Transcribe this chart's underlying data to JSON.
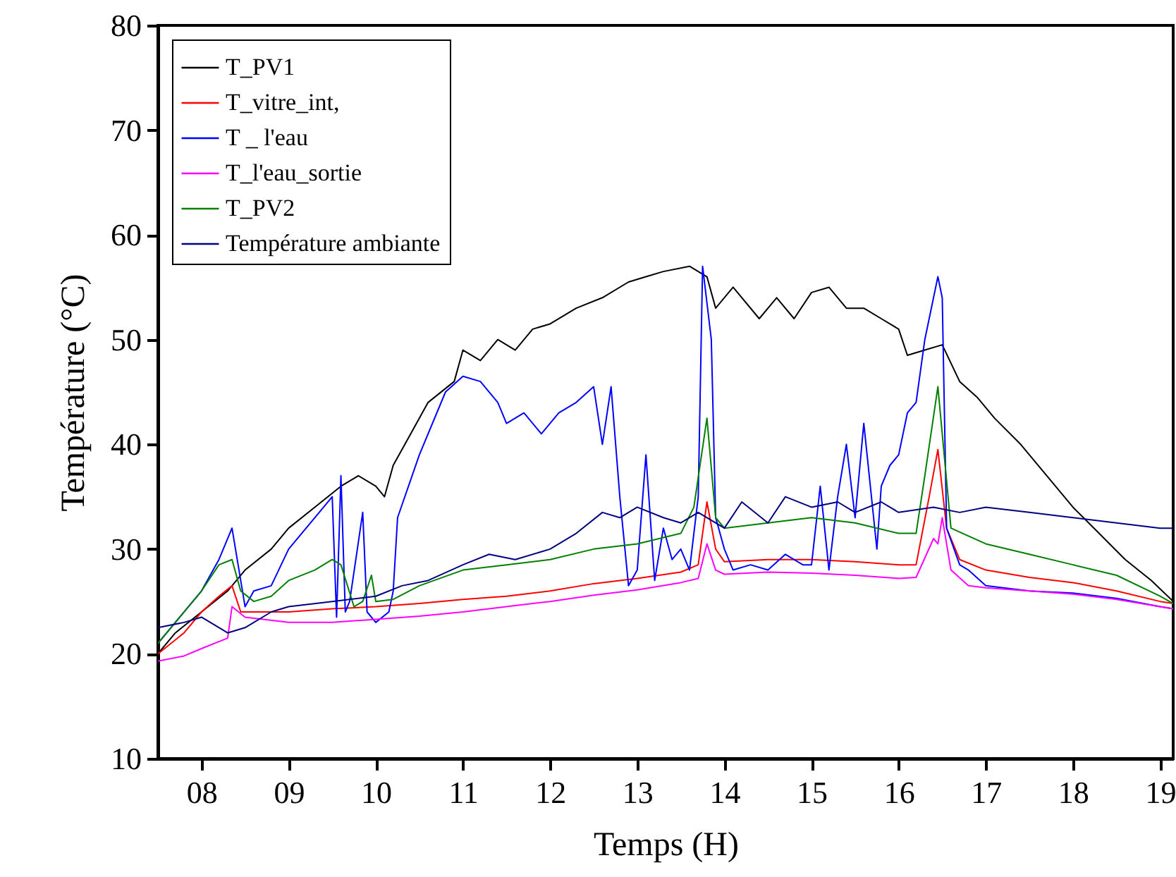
{
  "chart_data": {
    "type": "line",
    "xlabel": "Temps (H)",
    "ylabel": "Température (°C)",
    "legend": "top left",
    "marker": "none",
    "line_style": "solid",
    "xlim": [
      7.5,
      19.15
    ],
    "xticks": [
      {
        "value": 8,
        "label": "08"
      },
      {
        "value": 9,
        "label": "09"
      },
      10,
      11,
      12,
      13,
      14,
      15,
      16,
      17,
      18,
      19
    ],
    "ylim": [
      10,
      80
    ],
    "yticks": [
      10,
      20,
      30,
      40,
      50,
      60,
      70,
      80
    ],
    "series": [
      {
        "name": "T_PV1",
        "color": "#000000",
        "x": [
          7.5,
          7.7,
          8.0,
          8.3,
          8.5,
          8.8,
          9.0,
          9.3,
          9.6,
          9.8,
          10.0,
          10.1,
          10.2,
          10.4,
          10.6,
          10.9,
          11.0,
          11.2,
          11.4,
          11.6,
          11.8,
          12.0,
          12.3,
          12.6,
          12.9,
          13.1,
          13.3,
          13.6,
          13.8,
          13.9,
          14.1,
          14.4,
          14.6,
          14.8,
          15.0,
          15.2,
          15.4,
          15.6,
          15.8,
          16.0,
          16.1,
          16.3,
          16.5,
          16.7,
          16.9,
          17.1,
          17.4,
          17.7,
          18.0,
          18.3,
          18.6,
          18.9,
          19.15
        ],
        "values": [
          20,
          22,
          24,
          26,
          28,
          30,
          32,
          34,
          36,
          37,
          36,
          35,
          38,
          41,
          44,
          46,
          49,
          48,
          50,
          49,
          51,
          51.5,
          53,
          54,
          55.5,
          56,
          56.5,
          57,
          56,
          53,
          55,
          52,
          54,
          52,
          54.5,
          55,
          53,
          53,
          52,
          51,
          48.5,
          49,
          49.5,
          46,
          44.5,
          42.5,
          40,
          37,
          34,
          31.5,
          29,
          27,
          25
        ]
      },
      {
        "name": "T_vitre_int,",
        "color": "#ff0000",
        "x": [
          7.5,
          7.8,
          8.0,
          8.2,
          8.35,
          8.45,
          8.7,
          9.0,
          9.5,
          10.0,
          10.5,
          11.0,
          11.5,
          12.0,
          12.5,
          13.0,
          13.5,
          13.7,
          13.8,
          13.9,
          14.0,
          14.5,
          15.0,
          15.5,
          16.0,
          16.2,
          16.35,
          16.45,
          16.55,
          16.7,
          17.0,
          17.5,
          18.0,
          18.5,
          19.0,
          19.15
        ],
        "values": [
          20,
          22,
          24,
          25.5,
          26.5,
          24,
          24,
          24,
          24.3,
          24.5,
          24.8,
          25.2,
          25.5,
          26,
          26.7,
          27.2,
          27.8,
          28.5,
          34.5,
          30,
          28.8,
          29,
          29,
          28.8,
          28.5,
          28.5,
          35,
          39.5,
          32,
          29,
          28,
          27.3,
          26.8,
          26,
          25,
          24.8
        ]
      },
      {
        "name": "T _ l'eau",
        "color": "#0000ff",
        "x": [
          7.5,
          7.7,
          8.0,
          8.2,
          8.35,
          8.45,
          8.5,
          8.6,
          8.8,
          9.0,
          9.3,
          9.5,
          9.55,
          9.6,
          9.65,
          9.7,
          9.85,
          9.9,
          10.0,
          10.15,
          10.2,
          10.25,
          10.5,
          10.8,
          11.0,
          11.2,
          11.4,
          11.5,
          11.7,
          11.9,
          12.1,
          12.3,
          12.5,
          12.6,
          12.7,
          12.8,
          12.9,
          13.0,
          13.1,
          13.2,
          13.3,
          13.4,
          13.5,
          13.6,
          13.7,
          13.75,
          13.85,
          13.9,
          14.0,
          14.1,
          14.3,
          14.5,
          14.7,
          14.9,
          15.0,
          15.1,
          15.2,
          15.3,
          15.4,
          15.5,
          15.6,
          15.75,
          15.8,
          15.9,
          16.0,
          16.1,
          16.2,
          16.3,
          16.45,
          16.5,
          16.55,
          16.7,
          16.8,
          17.0,
          17.5,
          18.0,
          18.5,
          19.0,
          19.15
        ],
        "values": [
          21,
          23,
          26,
          29,
          32,
          27,
          24.5,
          26,
          26.5,
          30,
          33,
          35,
          23.5,
          37,
          24,
          25,
          33.5,
          24,
          23,
          24,
          26,
          33,
          39,
          45,
          46.5,
          46,
          44,
          42,
          43,
          41,
          43,
          44,
          45.5,
          40,
          45.5,
          35,
          26.5,
          28,
          39,
          27,
          32,
          29,
          30,
          28,
          35,
          57,
          50,
          33,
          30,
          28,
          28.5,
          28,
          29.5,
          28.5,
          28.5,
          36,
          28,
          35,
          40,
          33,
          42,
          30,
          36,
          38,
          39,
          43,
          44,
          50,
          56,
          54,
          32,
          28.5,
          28,
          26.5,
          26,
          25.8,
          25.3,
          24.5,
          24.3
        ]
      },
      {
        "name": "T_l'eau_sortie",
        "color": "#ff00ff",
        "x": [
          7.5,
          7.8,
          8.0,
          8.3,
          8.35,
          8.5,
          9.0,
          9.5,
          10.0,
          10.5,
          11.0,
          11.5,
          12.0,
          12.5,
          13.0,
          13.5,
          13.7,
          13.8,
          13.9,
          14.0,
          14.5,
          15.0,
          15.5,
          16.0,
          16.2,
          16.4,
          16.45,
          16.5,
          16.6,
          16.8,
          17.0,
          17.5,
          18.0,
          18.5,
          19.0,
          19.15
        ],
        "values": [
          19.3,
          19.8,
          20.5,
          21.5,
          24.5,
          23.5,
          23,
          23,
          23.3,
          23.6,
          24,
          24.5,
          25,
          25.6,
          26.1,
          26.8,
          27.2,
          30.5,
          28,
          27.6,
          27.8,
          27.7,
          27.5,
          27.2,
          27.3,
          31,
          30.5,
          33,
          28,
          26.5,
          26.3,
          26,
          25.7,
          25.2,
          24.5,
          24.3
        ]
      },
      {
        "name": "T_PV2",
        "color": "#008000",
        "x": [
          7.5,
          7.7,
          8.0,
          8.2,
          8.35,
          8.45,
          8.6,
          8.8,
          9.0,
          9.3,
          9.5,
          9.6,
          9.75,
          9.85,
          9.95,
          10.0,
          10.2,
          10.5,
          11.0,
          11.5,
          12.0,
          12.5,
          13.0,
          13.5,
          13.65,
          13.8,
          13.9,
          14.0,
          14.5,
          15.0,
          15.5,
          16.0,
          16.2,
          16.3,
          16.45,
          16.6,
          17.0,
          17.5,
          18.0,
          18.5,
          19.0,
          19.15
        ],
        "values": [
          21,
          23,
          26,
          28.5,
          29,
          26,
          25,
          25.5,
          27,
          28,
          29,
          28.5,
          24.5,
          25,
          27.5,
          25,
          25.2,
          26.5,
          28,
          28.5,
          29,
          30,
          30.5,
          31.5,
          34,
          42.5,
          33,
          32,
          32.5,
          33,
          32.5,
          31.5,
          31.5,
          37,
          45.5,
          32,
          30.5,
          29.5,
          28.5,
          27.5,
          25.5,
          24.8
        ]
      },
      {
        "name": "Température ambiante",
        "color": "#000080",
        "x": [
          7.5,
          7.8,
          8.0,
          8.3,
          8.5,
          8.8,
          9.0,
          9.5,
          10.0,
          10.3,
          10.6,
          11.0,
          11.3,
          11.6,
          12.0,
          12.3,
          12.6,
          12.8,
          13.0,
          13.3,
          13.5,
          13.7,
          14.0,
          14.2,
          14.5,
          14.7,
          15.0,
          15.3,
          15.5,
          15.8,
          16.0,
          16.4,
          16.7,
          17.0,
          17.5,
          18.0,
          18.5,
          19.0,
          19.15
        ],
        "values": [
          22.5,
          23,
          23.5,
          22,
          22.5,
          24,
          24.5,
          25,
          25.5,
          26.5,
          27,
          28.5,
          29.5,
          29,
          30,
          31.5,
          33.5,
          33,
          34,
          33,
          32.5,
          33.5,
          32,
          34.5,
          32.5,
          35,
          34,
          34.5,
          33.5,
          34.5,
          33.5,
          34,
          33.5,
          34,
          33.5,
          33,
          32.5,
          32,
          32
        ]
      }
    ]
  }
}
